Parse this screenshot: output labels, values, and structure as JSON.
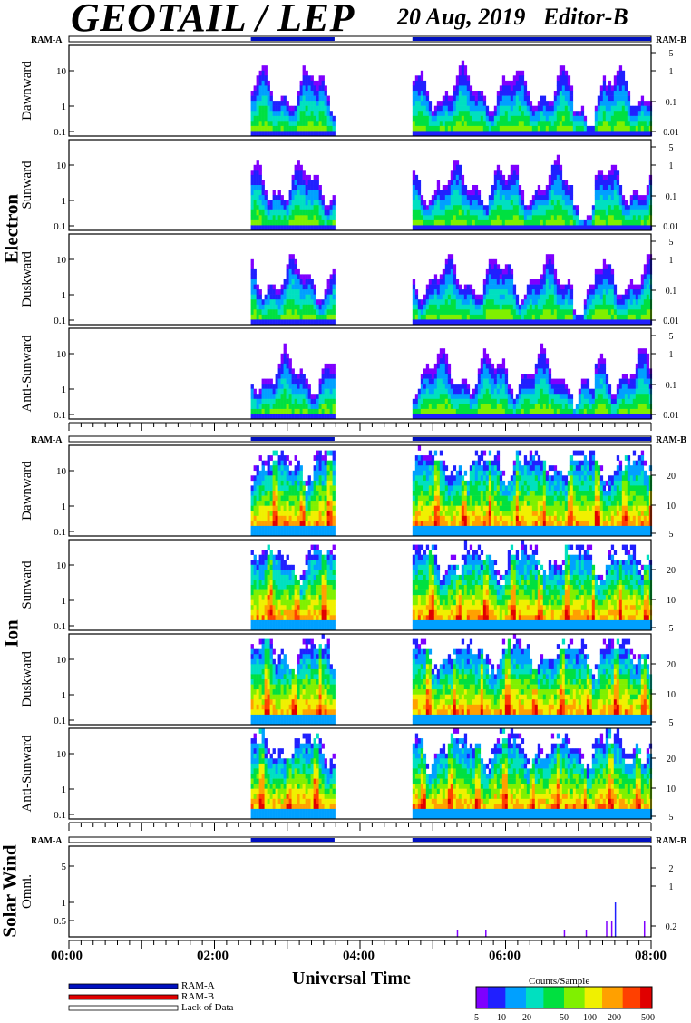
{
  "header": {
    "title": "GEOTAIL / LEP",
    "date": "20 Aug, 2019",
    "editor": "Editor-B"
  },
  "groups": {
    "electron": "Electron",
    "ion": "Ion",
    "solar_wind": "Solar Wind"
  },
  "ram_labels": {
    "a": "RAM-A",
    "b": "RAM-B"
  },
  "x_axis": {
    "title": "Universal Time",
    "ticks": [
      "00:00",
      "02:00",
      "04:00",
      "06:00",
      "08:00"
    ]
  },
  "legend": {
    "items": [
      {
        "label": "RAM-A",
        "color": "#0010c0"
      },
      {
        "label": "RAM-B",
        "color": "#e00000"
      },
      {
        "label": "Lack of Data",
        "color": "#ffffff"
      }
    ]
  },
  "colorbar": {
    "title": "Counts/Sample",
    "ticks": [
      "5",
      "10",
      "20",
      "50",
      "100",
      "200",
      "500"
    ],
    "colors": [
      "#7f00ff",
      "#2020ff",
      "#00a0ff",
      "#00e0c0",
      "#00e040",
      "#80f000",
      "#f0f000",
      "#ffa000",
      "#ff4000",
      "#e00000"
    ]
  },
  "chart_data": {
    "type": "heatmap",
    "x_range_hours": [
      0,
      8
    ],
    "data_intervals_hours": [
      [
        2.5,
        3.65
      ],
      [
        4.72,
        8.0
      ]
    ],
    "ram_a_intervals_hours": [
      [
        2.5,
        3.65
      ],
      [
        4.72,
        8.0
      ]
    ],
    "panels": [
      {
        "group": "Electron",
        "label": "Dawnward",
        "y_ticks": [
          "10",
          "1",
          "0.1"
        ],
        "y_right_ticks": [
          "5",
          "1",
          "0.1",
          "0.01"
        ],
        "species": "electron"
      },
      {
        "group": "Electron",
        "label": "Sunward",
        "y_ticks": [
          "10",
          "1",
          "0.1"
        ],
        "y_right_ticks": [
          "5",
          "1",
          "0.1",
          "0.01"
        ],
        "species": "electron"
      },
      {
        "group": "Electron",
        "label": "Duskward",
        "y_ticks": [
          "10",
          "1",
          "0.1"
        ],
        "y_right_ticks": [
          "5",
          "1",
          "0.1",
          "0.01"
        ],
        "species": "electron"
      },
      {
        "group": "Electron",
        "label": "Anti-Sunward",
        "y_ticks": [
          "10",
          "1",
          "0.1"
        ],
        "y_right_ticks": [
          "5",
          "1",
          "0.1",
          "0.01"
        ],
        "species": "electron"
      },
      {
        "group": "Ion",
        "label": "Dawnward",
        "y_ticks": [
          "10",
          "1",
          "0.1"
        ],
        "y_right_ticks": [
          "20",
          "10",
          "5"
        ],
        "species": "ion"
      },
      {
        "group": "Ion",
        "label": "Sunward",
        "y_ticks": [
          "10",
          "1",
          "0.1"
        ],
        "y_right_ticks": [
          "20",
          "10",
          "5"
        ],
        "species": "ion"
      },
      {
        "group": "Ion",
        "label": "Duskward",
        "y_ticks": [
          "10",
          "1",
          "0.1"
        ],
        "y_right_ticks": [
          "20",
          "10",
          "5"
        ],
        "species": "ion"
      },
      {
        "group": "Ion",
        "label": "Anti-Sunward",
        "y_ticks": [
          "10",
          "1",
          "0.1"
        ],
        "y_right_ticks": [
          "20",
          "10",
          "5"
        ],
        "species": "ion"
      },
      {
        "group": "Solar Wind",
        "label": "Omni.",
        "y_ticks": [
          "5",
          "1",
          "0.5"
        ],
        "y_right_ticks": [
          "2",
          "1",
          "0.2"
        ],
        "species": "sw"
      }
    ]
  }
}
